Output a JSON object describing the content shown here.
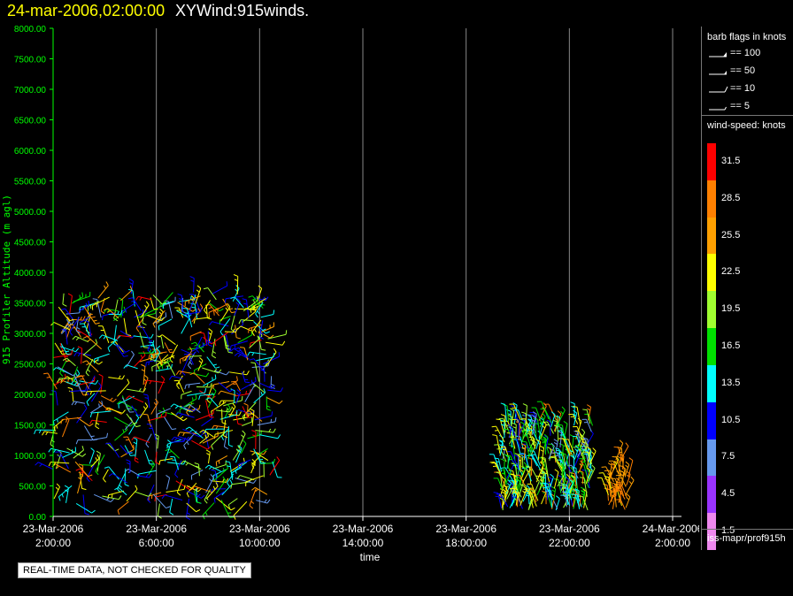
{
  "header": {
    "date_title": "24-mar-2006,02:00:00",
    "product_title": "XYWind:915winds."
  },
  "chart_data": {
    "type": "scatter",
    "ylabel": "915 Profiler Altitude (m agl)",
    "xlabel": "time",
    "y_ticks": [
      "0.00",
      "500.00",
      "1000.00",
      "1500.00",
      "2000.00",
      "2500.00",
      "3000.00",
      "3500.00",
      "4000.00",
      "4500.00",
      "5000.00",
      "5500.00",
      "6000.00",
      "6500.00",
      "7000.00",
      "7500.00",
      "8000.00"
    ],
    "ylim": [
      0,
      8000
    ],
    "x_ticks": [
      {
        "date": "23-Mar-2006",
        "time": "2:00:00",
        "hour": 2
      },
      {
        "date": "23-Mar-2006",
        "time": "6:00:00",
        "hour": 6
      },
      {
        "date": "23-Mar-2006",
        "time": "10:00:00",
        "hour": 10
      },
      {
        "date": "23-Mar-2006",
        "time": "14:00:00",
        "hour": 14
      },
      {
        "date": "23-Mar-2006",
        "time": "18:00:00",
        "hour": 18
      },
      {
        "date": "23-Mar-2006",
        "time": "22:00:00",
        "hour": 22
      },
      {
        "date": "24-Mar-2006",
        "time": "2:00:00",
        "hour": 26
      }
    ],
    "xlim_hours": [
      2,
      26
    ],
    "grid": "vertical",
    "wind_barb_clusters": [
      {
        "t_start": 2.0,
        "t_end": 10.5,
        "alt_min": 200,
        "alt_max": 3700
      },
      {
        "t_start": 19.3,
        "t_end": 22.9,
        "alt_min": 100,
        "alt_max": 1600
      },
      {
        "t_start": 23.5,
        "t_end": 24.3,
        "alt_min": 100,
        "alt_max": 1000
      }
    ]
  },
  "legend": {
    "flags_title": "barb flags in knots",
    "flags": [
      {
        "label": "== 100"
      },
      {
        "label": "== 50"
      },
      {
        "label": "== 10"
      },
      {
        "label": "== 5"
      }
    ],
    "speed_title": "wind-speed: knots",
    "speed_scale": [
      {
        "label": "31.5",
        "color": "#ff0000"
      },
      {
        "label": "28.5",
        "color": "#ff8000"
      },
      {
        "label": "25.5",
        "color": "#ffa000"
      },
      {
        "label": "22.5",
        "color": "#ffff00"
      },
      {
        "label": "19.5",
        "color": "#a0ff30"
      },
      {
        "label": "16.5",
        "color": "#00e000"
      },
      {
        "label": "13.5",
        "color": "#00ffff"
      },
      {
        "label": "10.5",
        "color": "#0000ff"
      },
      {
        "label": "7.5",
        "color": "#6699ee"
      },
      {
        "label": "4.5",
        "color": "#9933ff"
      },
      {
        "label": "1.5",
        "color": "#ee88ee"
      }
    ],
    "footer_path": "iss-mapr/prof915h"
  },
  "notes": {
    "quality": "REAL-TIME DATA, NOT CHECKED FOR QUALITY"
  },
  "colors": {
    "axis": "#00ff00",
    "grid": "#888888",
    "title_date": "#ffff00"
  }
}
